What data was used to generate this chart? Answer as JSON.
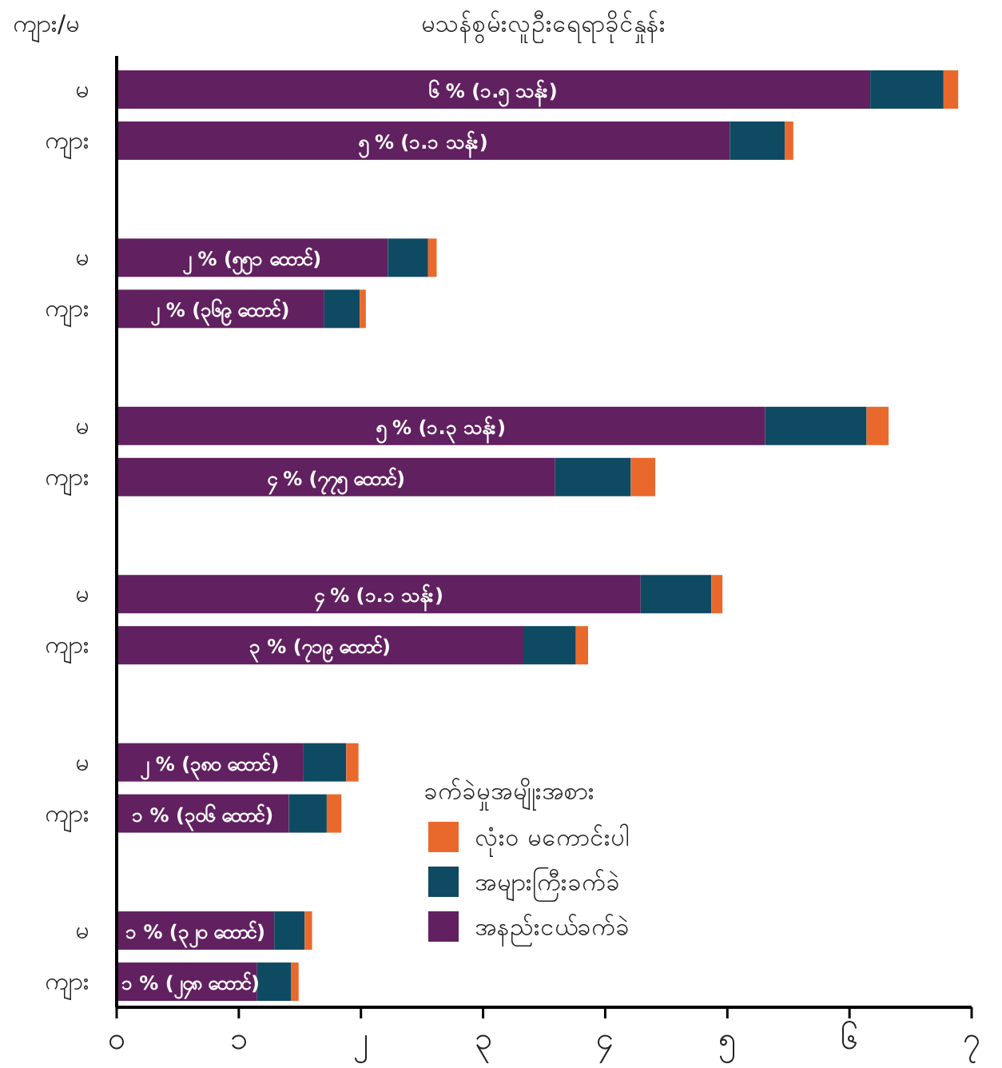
{
  "chart_data": {
    "type": "bar",
    "orientation": "horizontal",
    "stacked": true,
    "title": "မသန်စွမ်းလူဦးရေရာခိုင်နှုန်း",
    "ylabel": "ကျား/မ",
    "legend_title": "ခက်ခဲမှုအမျိုးအစား",
    "legend": "bottom",
    "categories": [
      "မ",
      "ကျား",
      "မ",
      "ကျား",
      "မ",
      "ကျား",
      "မ",
      "ကျား",
      "မ",
      "ကျား",
      "မ",
      "ကျား"
    ],
    "xlim": [
      0,
      7
    ],
    "xticks": [
      {
        "value": 0,
        "label": "၀"
      },
      {
        "value": 1,
        "label": "၁"
      },
      {
        "value": 2,
        "label": "၂"
      },
      {
        "value": 3,
        "label": "၃"
      },
      {
        "value": 4,
        "label": "၄"
      },
      {
        "value": 5,
        "label": "၅"
      },
      {
        "value": 6,
        "label": "၆"
      },
      {
        "value": 7,
        "label": "၇"
      }
    ],
    "grid": false,
    "series": [
      {
        "name": "အနည်းငယ်ခက်ခဲ",
        "color": "#612060",
        "values": [
          6.17,
          5.02,
          2.22,
          1.7,
          5.31,
          3.59,
          4.29,
          3.33,
          1.53,
          1.41,
          1.29,
          1.15
        ],
        "value_labels": [
          "၆ % (၁.၅ သန်း)",
          "၅ % (၁.၁ သန်း)",
          "၂ % (၅၅၁ ထောင်)",
          "၂ % (၃၆၉ ထောင်)",
          "၅ % (၁.၃ သန်း)",
          "၄ % (၇၇၅ ထောင်)",
          "၄ % (၁.၁ သန်း)",
          "၃ % (၇၁၉ ထောင်)",
          "၂ % (၃၈၀ ထောင်)",
          "၁ % (၃၀၆ ထောင်)",
          "၁ % (၃၂၀ ထောင်)",
          "၁ % (၂၄၈ ထောင်)"
        ]
      },
      {
        "name": "အများကြီးခက်ခဲ",
        "color": "#0f4a63",
        "values": [
          0.6,
          0.45,
          0.33,
          0.29,
          0.83,
          0.62,
          0.58,
          0.43,
          0.35,
          0.31,
          0.25,
          0.28
        ]
      },
      {
        "name": "လုံးဝ မကောင်းပါ",
        "color": "#e9692c",
        "values": [
          0.12,
          0.07,
          0.07,
          0.05,
          0.18,
          0.2,
          0.09,
          0.1,
          0.1,
          0.12,
          0.06,
          0.06
        ]
      }
    ]
  }
}
